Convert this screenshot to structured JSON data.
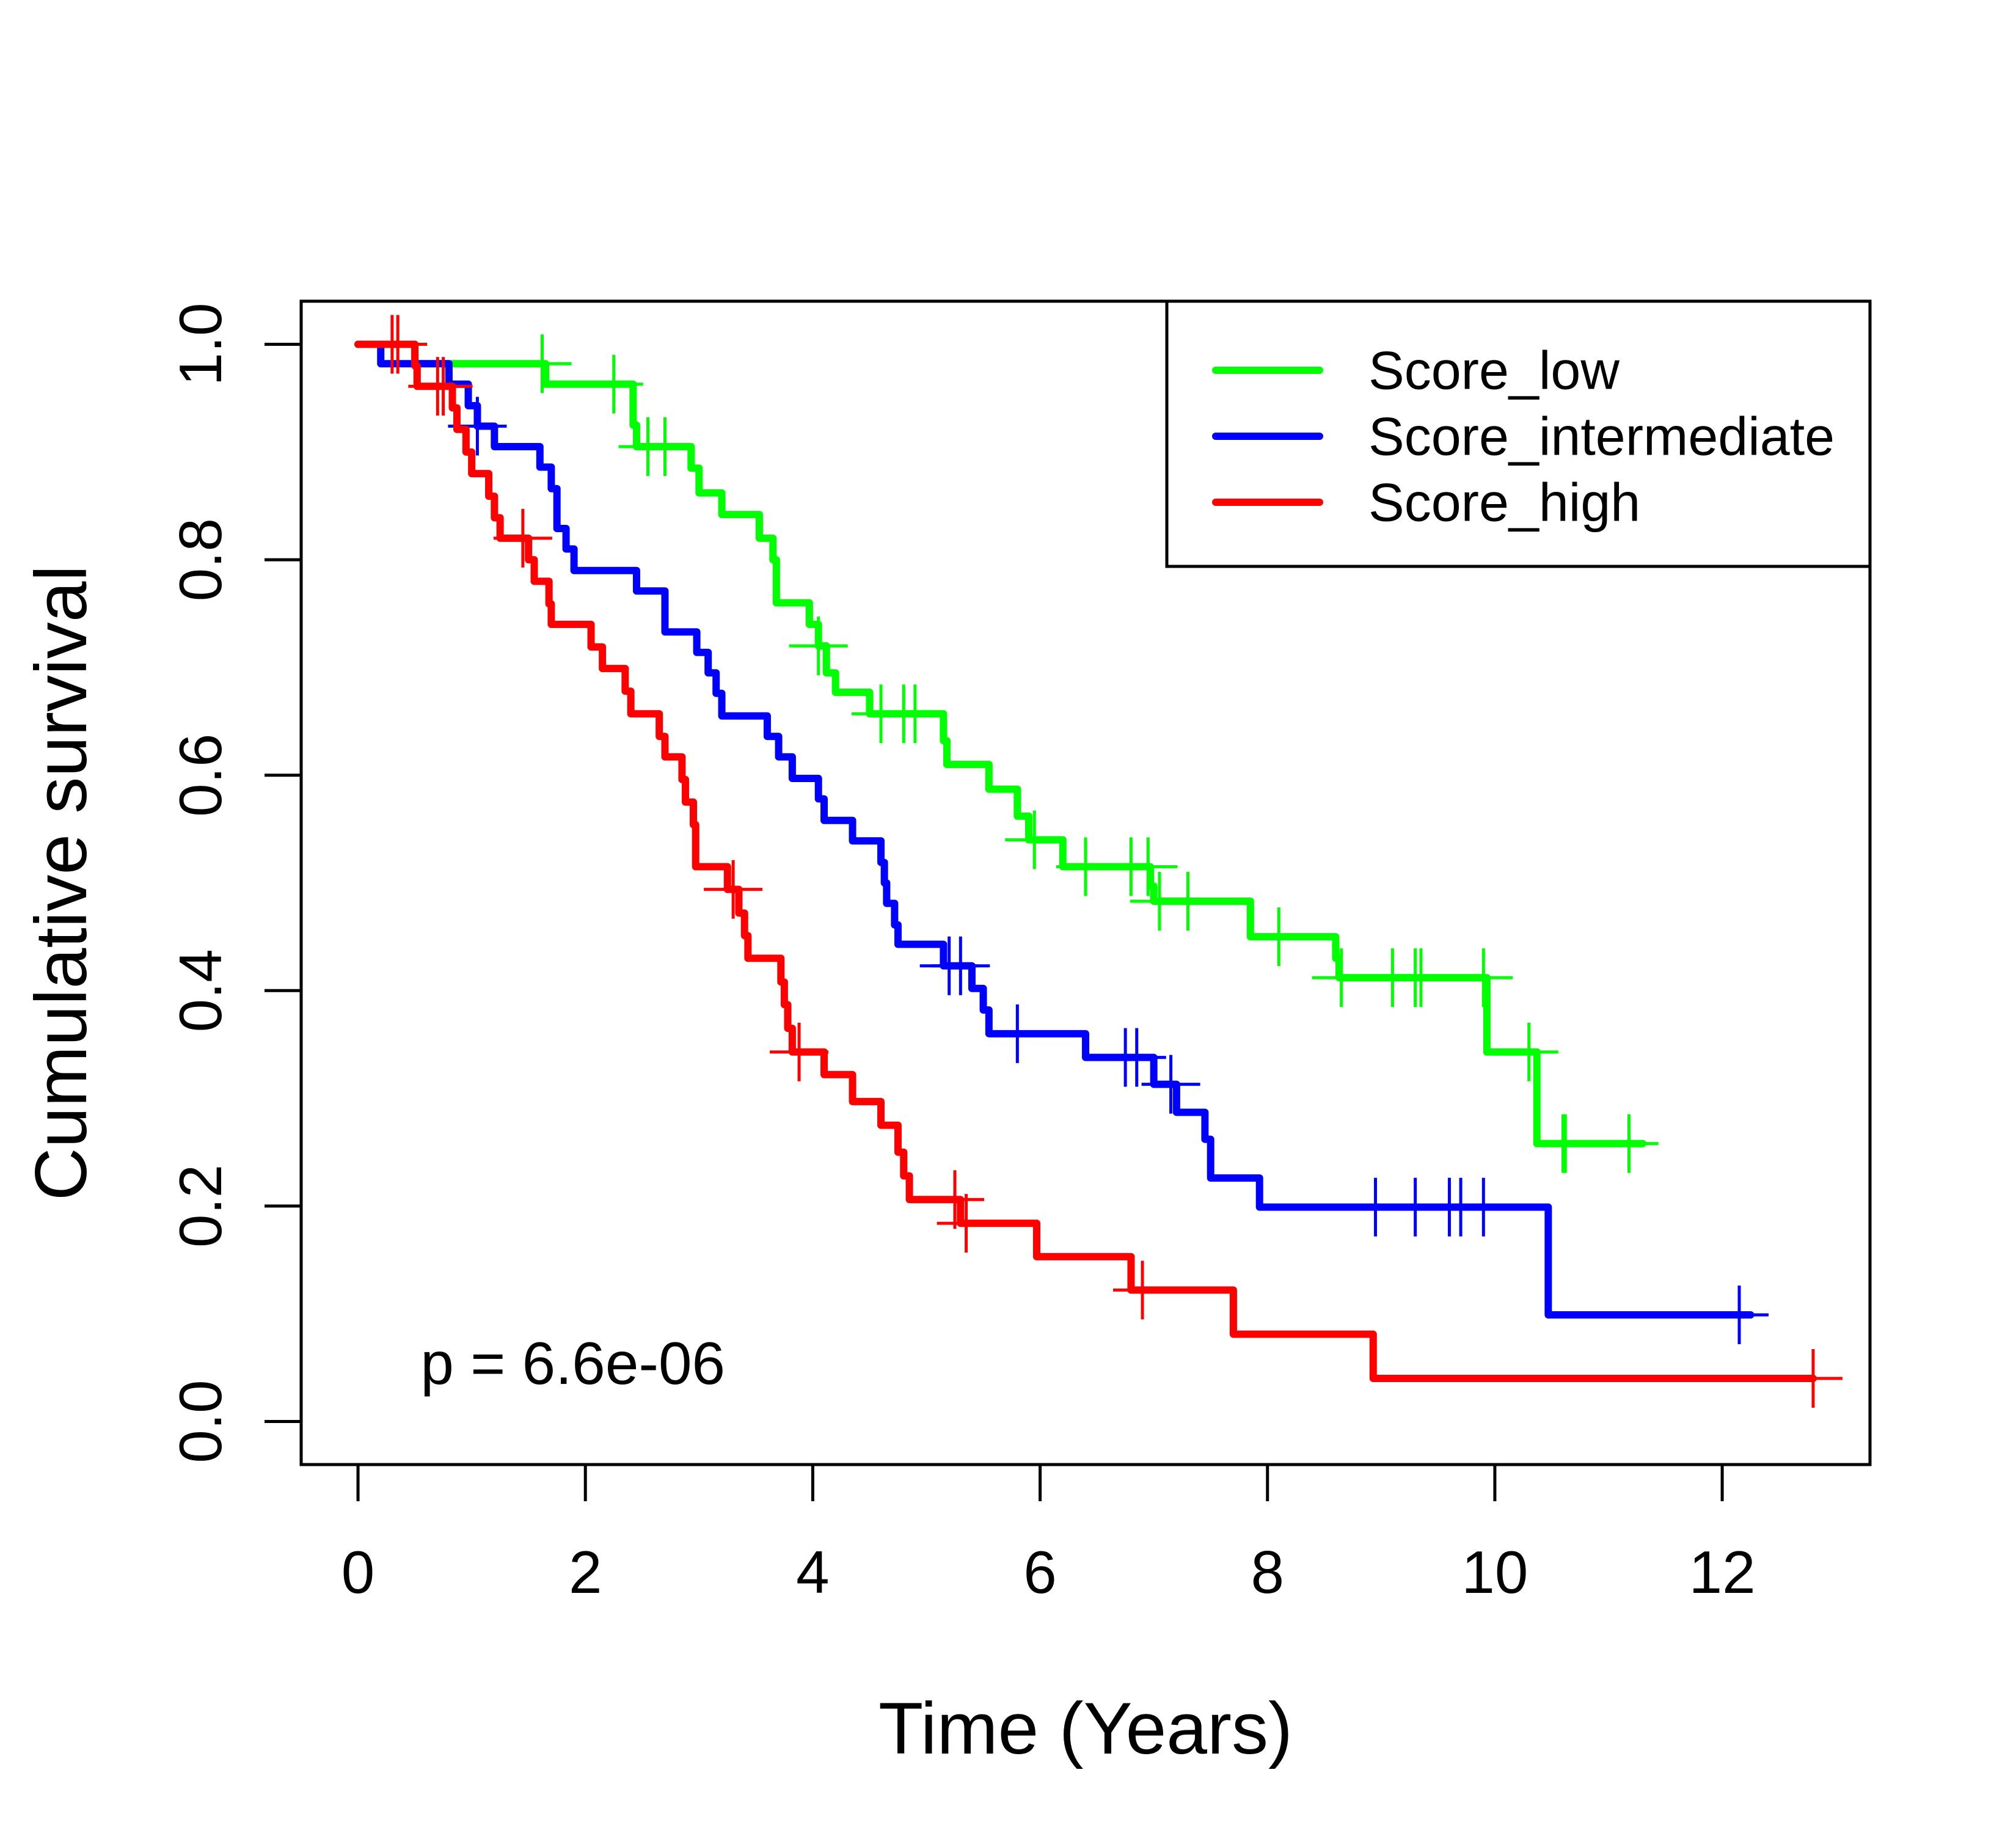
{
  "chart_data": {
    "type": "line",
    "subtype": "kaplan-meier step",
    "title": "",
    "xlabel": "Time (Years)",
    "ylabel": "Cumulative survival",
    "xlim": [
      -0.5,
      13.3
    ],
    "ylim": [
      -0.04,
      1.04
    ],
    "xticks": [
      0,
      2,
      4,
      6,
      8,
      10,
      12
    ],
    "xtick_labels": [
      "0",
      "2",
      "4",
      "6",
      "8",
      "10",
      "12"
    ],
    "yticks": [
      0.0,
      0.2,
      0.4,
      0.6,
      0.8,
      1.0
    ],
    "ytick_labels": [
      "0.0",
      "0.2",
      "0.4",
      "0.6",
      "0.8",
      "1.0"
    ],
    "grid": false,
    "legend_position": "top-right",
    "annotation": "p = 6.6e-06",
    "series": [
      {
        "name": "Score_low",
        "color": "#00ff00",
        "steps": [
          [
            0,
            1.0
          ],
          [
            0.5,
            0.982
          ],
          [
            1.65,
            0.963
          ],
          [
            2.42,
            0.925
          ],
          [
            2.45,
            0.905
          ],
          [
            2.93,
            0.885
          ],
          [
            3.0,
            0.862
          ],
          [
            3.2,
            0.842
          ],
          [
            3.53,
            0.82
          ],
          [
            3.65,
            0.8
          ],
          [
            3.68,
            0.76
          ],
          [
            3.97,
            0.74
          ],
          [
            4.05,
            0.72
          ],
          [
            4.12,
            0.695
          ],
          [
            4.2,
            0.677
          ],
          [
            4.5,
            0.657
          ],
          [
            5.15,
            0.632
          ],
          [
            5.18,
            0.61
          ],
          [
            5.55,
            0.587
          ],
          [
            5.8,
            0.562
          ],
          [
            5.9,
            0.54
          ],
          [
            6.2,
            0.515
          ],
          [
            6.97,
            0.497
          ],
          [
            7.0,
            0.483
          ],
          [
            7.85,
            0.45
          ],
          [
            8.6,
            0.43
          ],
          [
            8.63,
            0.412
          ],
          [
            9.93,
            0.343
          ],
          [
            10.37,
            0.258
          ]
        ],
        "end_time": 11.3,
        "censored": [
          1.62,
          2.25,
          2.55,
          2.7,
          4.05,
          4.6,
          4.8,
          4.9,
          5.95,
          6.4,
          6.8,
          6.95,
          7.05,
          7.3,
          8.1,
          8.65,
          9.1,
          9.3,
          9.35,
          9.9,
          10.3,
          10.6,
          10.62,
          11.18
        ]
      },
      {
        "name": "Score_intermediate",
        "color": "#0000ff",
        "steps": [
          [
            0,
            1.0
          ],
          [
            0.2,
            0.982
          ],
          [
            0.8,
            0.963
          ],
          [
            0.97,
            0.943
          ],
          [
            1.05,
            0.924
          ],
          [
            1.2,
            0.905
          ],
          [
            1.6,
            0.886
          ],
          [
            1.7,
            0.866
          ],
          [
            1.75,
            0.829
          ],
          [
            1.83,
            0.81
          ],
          [
            1.9,
            0.79
          ],
          [
            2.45,
            0.771
          ],
          [
            2.7,
            0.733
          ],
          [
            2.98,
            0.714
          ],
          [
            3.08,
            0.695
          ],
          [
            3.15,
            0.676
          ],
          [
            3.2,
            0.655
          ],
          [
            3.6,
            0.636
          ],
          [
            3.7,
            0.617
          ],
          [
            3.82,
            0.597
          ],
          [
            4.05,
            0.578
          ],
          [
            4.1,
            0.558
          ],
          [
            4.35,
            0.539
          ],
          [
            4.6,
            0.519
          ],
          [
            4.63,
            0.5
          ],
          [
            4.65,
            0.481
          ],
          [
            4.72,
            0.461
          ],
          [
            4.75,
            0.443
          ],
          [
            5.15,
            0.423
          ],
          [
            5.4,
            0.402
          ],
          [
            5.5,
            0.382
          ],
          [
            5.55,
            0.36
          ],
          [
            6.4,
            0.338
          ],
          [
            7.0,
            0.313
          ],
          [
            7.2,
            0.287
          ],
          [
            7.45,
            0.262
          ],
          [
            7.5,
            0.226
          ],
          [
            7.93,
            0.199
          ],
          [
            10.47,
            0.099
          ]
        ],
        "end_time": 12.25,
        "censored": [
          1.05,
          5.2,
          5.3,
          5.8,
          6.75,
          6.85,
          7.15,
          8.95,
          9.3,
          9.6,
          9.7,
          9.9,
          12.15
        ]
      },
      {
        "name": "Score_high",
        "color": "#ff0000",
        "steps": [
          [
            0,
            1.0
          ],
          [
            0.5,
            0.98
          ],
          [
            0.52,
            0.961
          ],
          [
            0.83,
            0.941
          ],
          [
            0.87,
            0.921
          ],
          [
            0.95,
            0.9
          ],
          [
            1.0,
            0.88
          ],
          [
            1.15,
            0.859
          ],
          [
            1.2,
            0.839
          ],
          [
            1.25,
            0.82
          ],
          [
            1.5,
            0.8
          ],
          [
            1.55,
            0.78
          ],
          [
            1.68,
            0.759
          ],
          [
            1.7,
            0.74
          ],
          [
            2.05,
            0.719
          ],
          [
            2.15,
            0.699
          ],
          [
            2.35,
            0.678
          ],
          [
            2.4,
            0.657
          ],
          [
            2.65,
            0.636
          ],
          [
            2.7,
            0.617
          ],
          [
            2.85,
            0.596
          ],
          [
            2.88,
            0.575
          ],
          [
            2.95,
            0.554
          ],
          [
            2.97,
            0.515
          ],
          [
            3.25,
            0.494
          ],
          [
            3.35,
            0.472
          ],
          [
            3.4,
            0.451
          ],
          [
            3.43,
            0.43
          ],
          [
            3.72,
            0.408
          ],
          [
            3.75,
            0.387
          ],
          [
            3.78,
            0.365
          ],
          [
            3.82,
            0.343
          ],
          [
            4.1,
            0.322
          ],
          [
            4.35,
            0.297
          ],
          [
            4.6,
            0.275
          ],
          [
            4.75,
            0.25
          ],
          [
            4.8,
            0.228
          ],
          [
            4.85,
            0.206
          ],
          [
            5.3,
            0.184
          ],
          [
            5.97,
            0.153
          ],
          [
            6.8,
            0.122
          ],
          [
            7.7,
            0.081
          ],
          [
            8.93,
            0.04
          ]
        ],
        "end_time": 12.8,
        "censored": [
          0.3,
          0.35,
          0.7,
          0.75,
          1.45,
          3.3,
          3.88,
          5.25,
          5.35,
          6.9,
          12.8
        ]
      }
    ]
  }
}
